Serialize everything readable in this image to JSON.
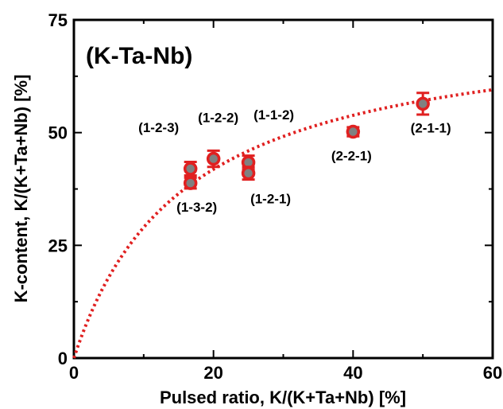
{
  "chart_data": {
    "type": "scatter",
    "title": "(K-Ta-Nb)",
    "xlabel": "Pulsed ratio, K/(K+Ta+Nb) [%]",
    "ylabel": "K-content, K/(K+Ta+Nb) [%]",
    "xlim": [
      0,
      60
    ],
    "ylim": [
      0,
      75
    ],
    "xticks": [
      "0",
      "20",
      "40",
      "60"
    ],
    "yticks": [
      "0",
      "25",
      "50",
      "75"
    ],
    "grid": false,
    "points": [
      {
        "label": "(1-2-3)",
        "x": 16.7,
        "y": 42.0,
        "err": 1.5
      },
      {
        "label": "(1-3-2)",
        "x": 16.7,
        "y": 38.8,
        "err": 1.2
      },
      {
        "label": "(1-2-2)",
        "x": 20.0,
        "y": 44.2,
        "err": 1.8
      },
      {
        "label": "(1-1-2)",
        "x": 25.0,
        "y": 43.4,
        "err": 1.5
      },
      {
        "label": "(1-2-1)",
        "x": 25.0,
        "y": 41.0,
        "err": 1.4
      },
      {
        "label": "(2-2-1)",
        "x": 40.0,
        "y": 50.2,
        "err": 1.0
      },
      {
        "label": "(2-1-1)",
        "x": 50.0,
        "y": 56.4,
        "err": 2.4
      }
    ],
    "fit_curve": {
      "style": "dotted",
      "color": "#e02020",
      "xmax": 60,
      "ymax_at_xmax": 59.5
    },
    "colors": {
      "marker_fill": "#808080",
      "marker_edge": "#e02020",
      "error_bar": "#e02020",
      "axis": "#000000"
    }
  }
}
